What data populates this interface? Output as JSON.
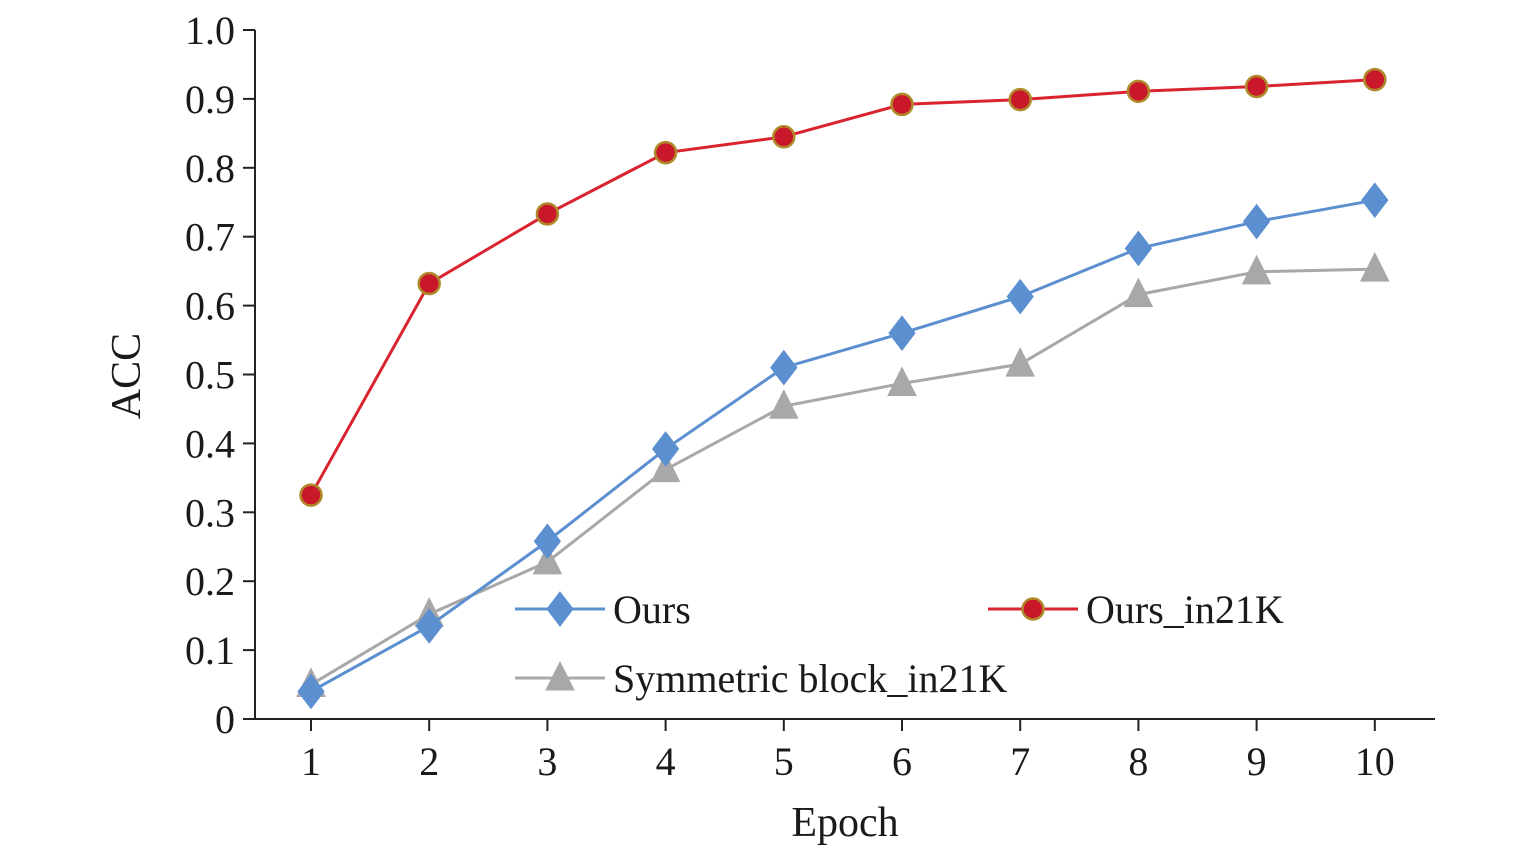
{
  "chart_data": {
    "type": "line",
    "title": "",
    "xlabel": "Epoch",
    "ylabel": "ACC",
    "x": [
      1,
      2,
      3,
      4,
      5,
      6,
      7,
      8,
      9,
      10
    ],
    "xticks": [
      "1",
      "2",
      "3",
      "4",
      "5",
      "6",
      "7",
      "8",
      "9",
      "10"
    ],
    "yticks": [
      "0",
      "0.1",
      "0.2",
      "0.3",
      "0.4",
      "0.5",
      "0.6",
      "0.7",
      "0.8",
      "0.9",
      "1.0"
    ],
    "ylim": [
      0,
      1.0
    ],
    "grid": false,
    "legend_placement": "bottom-center, inside plot",
    "series": [
      {
        "name": "Ours",
        "color": "#5b8fd0",
        "marker": "diamond",
        "values": [
          0.04,
          0.135,
          0.258,
          0.392,
          0.51,
          0.56,
          0.613,
          0.683,
          0.722,
          0.753
        ]
      },
      {
        "name": "Ours_in21K",
        "color": "#d9232e",
        "marker": "circle",
        "values": [
          0.325,
          0.632,
          0.733,
          0.822,
          0.845,
          0.892,
          0.899,
          0.911,
          0.918,
          0.928
        ]
      },
      {
        "name": "Symmetric block_in21K",
        "color": "#a8a8a8",
        "marker": "triangle",
        "values": [
          0.05,
          0.152,
          0.228,
          0.362,
          0.454,
          0.487,
          0.515,
          0.616,
          0.649,
          0.653
        ]
      }
    ]
  }
}
